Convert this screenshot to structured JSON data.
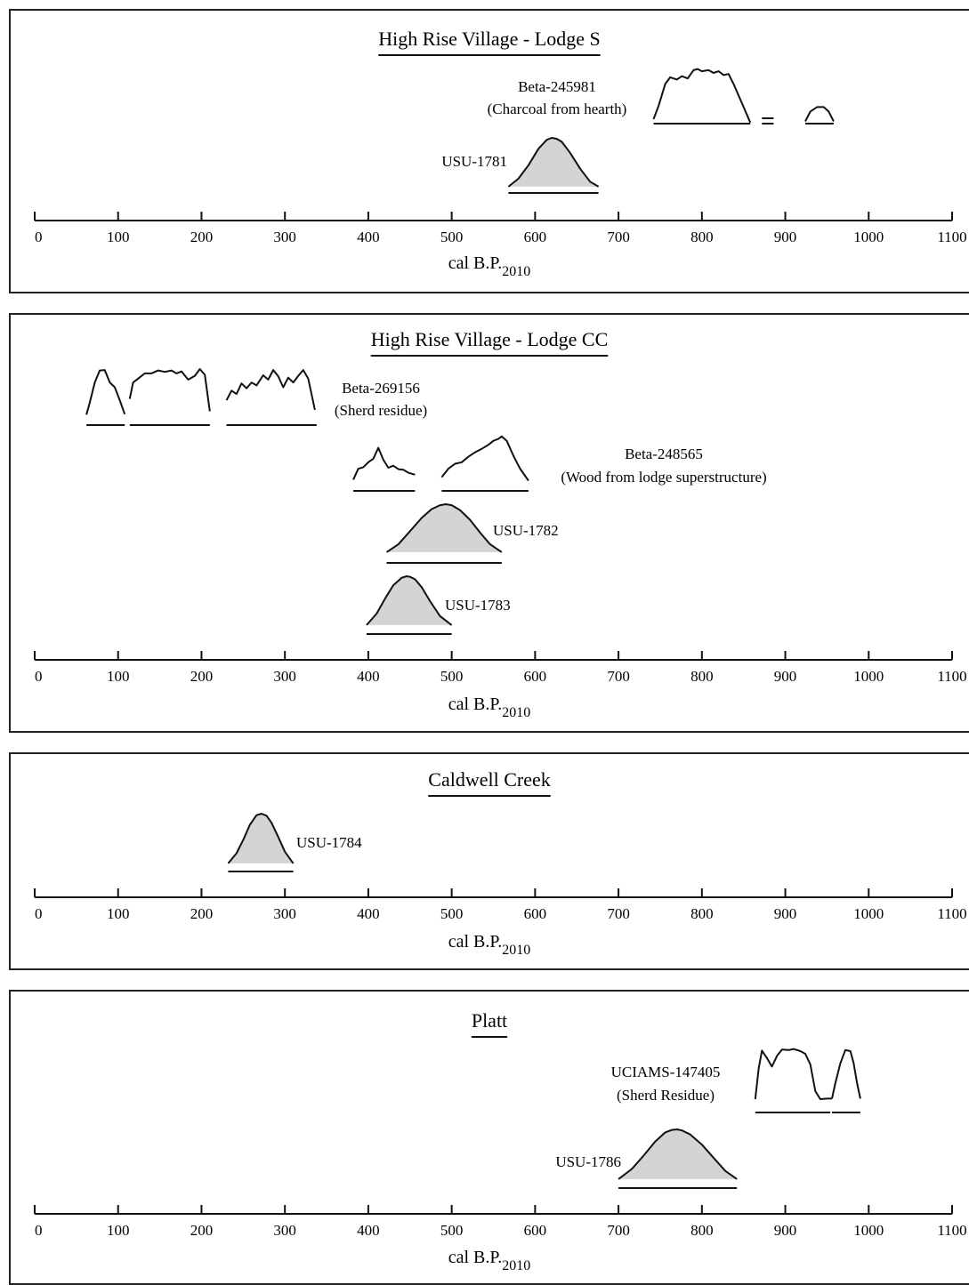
{
  "chart_data": [
    {
      "type": "area",
      "title": "High Rise Village - Lodge S",
      "xlabel": "cal B.P.",
      "xlabel_sub": "2010",
      "xlim": [
        0,
        1100
      ],
      "x_ticks": [
        "0",
        "100",
        "200",
        "300",
        "400",
        "500",
        "600",
        "700",
        "800",
        "900",
        "1000",
        "1100"
      ],
      "dates": [
        {
          "name": "Beta-245981",
          "note": "(Charcoal from hearth)",
          "style": "outline",
          "curves": [
            {
              "x": [
                742,
                748,
                756,
                762,
                770,
                776,
                783,
                790,
                795,
                800,
                808,
                814,
                820,
                826,
                832,
                838,
                850,
                858
              ],
              "y": [
                0.08,
                0.32,
                0.72,
                0.84,
                0.8,
                0.86,
                0.82,
                0.97,
                0.99,
                0.95,
                0.97,
                0.92,
                0.95,
                0.88,
                0.9,
                0.72,
                0.3,
                0.02
              ]
            },
            {
              "x": [
                924,
                930,
                938,
                946,
                952,
                958
              ],
              "y": [
                0.04,
                0.22,
                0.3,
                0.3,
                0.22,
                0.04
              ]
            }
          ],
          "ranges": [
            [
              742,
              858
            ],
            [
              872,
              886
            ],
            [
              924,
              958
            ]
          ]
        },
        {
          "name": "USU-1781",
          "style": "filled",
          "peak": 623,
          "curves": [
            {
              "x": [
                568,
                580,
                592,
                604,
                614,
                620,
                626,
                632,
                642,
                654,
                666,
                676
              ],
              "y": [
                0.02,
                0.18,
                0.45,
                0.78,
                0.96,
                1.0,
                0.98,
                0.92,
                0.7,
                0.38,
                0.12,
                0.02
              ]
            }
          ],
          "ranges": [
            [
              568,
              676
            ]
          ]
        }
      ]
    },
    {
      "type": "area",
      "title": "High Rise Village - Lodge CC",
      "xlabel": "cal B.P.",
      "xlabel_sub": "2010",
      "xlim": [
        0,
        1100
      ],
      "x_ticks": [
        "0",
        "100",
        "200",
        "300",
        "400",
        "500",
        "600",
        "700",
        "800",
        "900",
        "1000",
        "1100"
      ],
      "dates": [
        {
          "name": "Beta-269156",
          "note": "(Sherd residue)",
          "style": "outline",
          "curves": [
            {
              "x": [
                62,
                66,
                72,
                78,
                84,
                90,
                96,
                102,
                108
              ],
              "y": [
                0.05,
                0.3,
                0.72,
                0.97,
                0.98,
                0.72,
                0.62,
                0.35,
                0.06
              ]
            },
            {
              "x": [
                114,
                118,
                124,
                132,
                140,
                148,
                156,
                164,
                170,
                176,
                184,
                192,
                198,
                204,
                210
              ],
              "y": [
                0.38,
                0.72,
                0.8,
                0.91,
                0.91,
                0.97,
                0.94,
                0.97,
                0.91,
                0.95,
                0.78,
                0.86,
                1.0,
                0.88,
                0.12
              ]
            },
            {
              "x": [
                230,
                236,
                242,
                248,
                254,
                260,
                266,
                274,
                280,
                286,
                292,
                298,
                304,
                310,
                316,
                322,
                328,
                336
              ],
              "y": [
                0.35,
                0.55,
                0.48,
                0.7,
                0.6,
                0.72,
                0.66,
                0.87,
                0.78,
                0.98,
                0.85,
                0.62,
                0.82,
                0.72,
                0.86,
                0.98,
                0.8,
                0.15
              ]
            }
          ],
          "ranges": [
            [
              62,
              108
            ],
            [
              114,
              210
            ],
            [
              230,
              338
            ]
          ]
        },
        {
          "name": "Beta-248565",
          "note": "(Wood from lodge superstructure)",
          "style": "outline",
          "curves": [
            {
              "x": [
                382,
                388,
                394,
                400,
                406,
                412,
                418,
                424,
                430,
                436,
                442,
                448,
                456
              ],
              "y": [
                0.1,
                0.32,
                0.35,
                0.45,
                0.52,
                0.74,
                0.5,
                0.34,
                0.38,
                0.31,
                0.3,
                0.24,
                0.2
              ]
            },
            {
              "x": [
                488,
                496,
                504,
                512,
                520,
                528,
                536,
                544,
                550,
                556,
                560,
                566,
                574,
                582,
                592
              ],
              "y": [
                0.15,
                0.32,
                0.42,
                0.45,
                0.56,
                0.65,
                0.72,
                0.8,
                0.88,
                0.92,
                0.97,
                0.88,
                0.58,
                0.32,
                0.08
              ]
            }
          ],
          "ranges": [
            [
              382,
              456
            ],
            [
              488,
              592
            ]
          ]
        },
        {
          "name": "USU-1782",
          "style": "filled",
          "peak": 493,
          "curves": [
            {
              "x": [
                422,
                436,
                450,
                464,
                476,
                486,
                493,
                500,
                510,
                522,
                534,
                546,
                560
              ],
              "y": [
                0.02,
                0.18,
                0.45,
                0.72,
                0.9,
                0.98,
                1.0,
                0.98,
                0.88,
                0.68,
                0.42,
                0.18,
                0.02
              ]
            }
          ],
          "ranges": [
            [
              422,
              560
            ]
          ]
        },
        {
          "name": "USU-1783",
          "style": "filled",
          "peak": 449,
          "curves": [
            {
              "x": [
                398,
                410,
                420,
                430,
                440,
                446,
                450,
                456,
                464,
                474,
                486,
                500
              ],
              "y": [
                0.02,
                0.25,
                0.55,
                0.82,
                0.97,
                1.0,
                0.99,
                0.94,
                0.78,
                0.5,
                0.2,
                0.02
              ]
            }
          ],
          "ranges": [
            [
              398,
              500
            ]
          ]
        }
      ]
    },
    {
      "type": "area",
      "title": "Caldwell Creek",
      "xlabel": "cal B.P.",
      "xlabel_sub": "2010",
      "xlim": [
        0,
        1100
      ],
      "x_ticks": [
        "0",
        "100",
        "200",
        "300",
        "400",
        "500",
        "600",
        "700",
        "800",
        "900",
        "1000",
        "1100"
      ],
      "dates": [
        {
          "name": "USU-1784",
          "style": "filled",
          "peak": 272,
          "curves": [
            {
              "x": [
                232,
                242,
                250,
                258,
                266,
                272,
                278,
                284,
                292,
                300,
                310
              ],
              "y": [
                0.02,
                0.22,
                0.48,
                0.78,
                0.97,
                1.0,
                0.96,
                0.82,
                0.54,
                0.25,
                0.02
              ]
            }
          ],
          "ranges": [
            [
              232,
              310
            ]
          ]
        }
      ]
    },
    {
      "type": "area",
      "title": "Platt",
      "xlabel": "cal B.P.",
      "xlabel_sub": "2010",
      "xlim": [
        0,
        1100
      ],
      "x_ticks": [
        "0",
        "100",
        "200",
        "300",
        "400",
        "500",
        "600",
        "700",
        "800",
        "900",
        "1000",
        "1100"
      ],
      "dates": [
        {
          "name": "UCIAMS-147405",
          "note": "(Sherd Residue)",
          "style": "outline",
          "curves": [
            {
              "x": [
                864,
                868,
                872,
                878,
                884,
                890,
                896,
                904,
                910,
                918,
                924,
                930,
                936,
                942,
                950,
                956
              ],
              "y": [
                0.05,
                0.62,
                0.96,
                0.82,
                0.66,
                0.86,
                0.98,
                0.97,
                0.99,
                0.95,
                0.9,
                0.7,
                0.2,
                0.05,
                0.06,
                0.06
              ]
            },
            {
              "x": [
                956,
                960,
                966,
                972,
                978,
                982,
                986,
                990
              ],
              "y": [
                0.06,
                0.35,
                0.72,
                0.97,
                0.95,
                0.72,
                0.35,
                0.06
              ]
            }
          ],
          "ranges": [
            [
              864,
              954
            ],
            [
              956,
              990
            ]
          ]
        },
        {
          "name": "USU-1786",
          "style": "filled",
          "peak": 770,
          "curves": [
            {
              "x": [
                700,
                716,
                730,
                744,
                756,
                764,
                770,
                776,
                786,
                800,
                814,
                828,
                842
              ],
              "y": [
                0.02,
                0.22,
                0.48,
                0.76,
                0.94,
                0.99,
                1.0,
                0.98,
                0.9,
                0.7,
                0.44,
                0.18,
                0.02
              ]
            }
          ],
          "ranges": [
            [
              700,
              842
            ]
          ]
        }
      ]
    }
  ]
}
